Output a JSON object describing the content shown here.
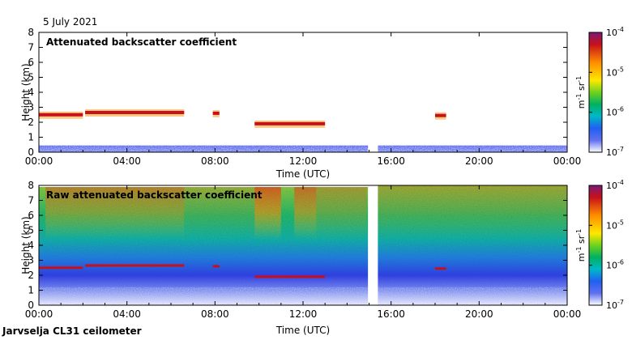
{
  "date": "5 July 2021",
  "footer": "Jarvselja CL31 ceilometer",
  "colorbar": {
    "ticks": [
      "10^-4",
      "10^-5",
      "10^-6",
      "10^-7"
    ],
    "unit": "m^-1 sr^-1",
    "colors": [
      "#7a1a78",
      "#c8101a",
      "#ff8c00",
      "#ffe800",
      "#6fd21e",
      "#00b060",
      "#00b8c8",
      "#2060f0",
      "#6070f0",
      "#ffffff"
    ]
  },
  "chart_data": [
    {
      "type": "heatmap",
      "title": "Attenuated backscatter coefficient",
      "xlabel": "Time (UTC)",
      "ylabel": "Height (km)",
      "xlim": [
        0,
        24
      ],
      "ylim": [
        0,
        8
      ],
      "xticks": [
        "00:00",
        "04:00",
        "08:00",
        "12:00",
        "16:00",
        "20:00",
        "00:00"
      ],
      "yticks": [
        "0",
        "1",
        "2",
        "3",
        "4",
        "5",
        "6",
        "7",
        "8"
      ],
      "data_gap_hours": [
        14.95,
        15.4
      ],
      "cloud_layers": [
        {
          "start_hour": 0.0,
          "end_hour": 2.0,
          "height_km": 2.5
        },
        {
          "start_hour": 2.1,
          "end_hour": 6.6,
          "height_km": 2.65
        },
        {
          "start_hour": 7.9,
          "end_hour": 8.2,
          "height_km": 2.6
        },
        {
          "start_hour": 9.8,
          "end_hour": 13.0,
          "height_km": 1.9
        },
        {
          "start_hour": 18.0,
          "end_hour": 18.5,
          "height_km": 2.45
        }
      ]
    },
    {
      "type": "heatmap",
      "title": "Raw attenuated backscatter coefficient",
      "xlabel": "Time (UTC)",
      "ylabel": "Height (km)",
      "xlim": [
        0,
        24
      ],
      "ylim": [
        0,
        8
      ],
      "xticks": [
        "00:00",
        "04:00",
        "08:00",
        "12:00",
        "16:00",
        "20:00",
        "00:00"
      ],
      "yticks": [
        "0",
        "1",
        "2",
        "3",
        "4",
        "5",
        "6",
        "7",
        "8"
      ],
      "data_gap_hours": [
        14.95,
        15.4
      ]
    }
  ]
}
